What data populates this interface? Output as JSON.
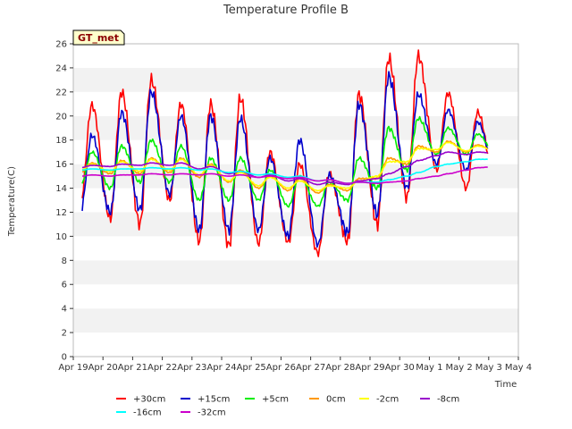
{
  "chart_data": {
    "type": "line",
    "title": "Temperature Profile B",
    "xlabel": "Time",
    "ylabel": "Temperature(C)",
    "badge": "GT_met",
    "ylim": [
      0,
      26
    ],
    "yticks": [
      0,
      2,
      4,
      6,
      8,
      10,
      12,
      14,
      16,
      18,
      20,
      22,
      24,
      26
    ],
    "xlim": [
      0,
      15
    ],
    "x_tick_labels": [
      "Apr 19",
      "Apr 20",
      "Apr 21",
      "Apr 22",
      "Apr 23",
      "Apr 24",
      "Apr 25",
      "Apr 26",
      "Apr 27",
      "Apr 28",
      "Apr 29",
      "Apr 30",
      "May 1",
      "May 2",
      "May 3",
      "May 4"
    ],
    "grid": "horizontal bands",
    "legend_position": "bottom",
    "series": [
      {
        "name": "+30cm",
        "color": "#ff0000",
        "daily_min": [
          12.9,
          11.5,
          11.0,
          13.0,
          9.6,
          9.2,
          9.4,
          9.5,
          8.6,
          9.6,
          11.0,
          13.2,
          15.5,
          14.0,
          14.2
        ],
        "daily_max": [
          20.9,
          22.0,
          23.0,
          21.0,
          21.0,
          21.5,
          17.0,
          16.0,
          15.2,
          21.8,
          24.8,
          25.0,
          21.9,
          20.3,
          18.2
        ]
      },
      {
        "name": "+15cm",
        "color": "#0000cc",
        "daily_min": [
          12.1,
          12.0,
          12.2,
          13.5,
          10.5,
          10.5,
          10.5,
          10.0,
          9.3,
          10.3,
          11.8,
          14.0,
          16.0,
          15.5,
          15.3
        ],
        "daily_max": [
          18.4,
          20.3,
          22.0,
          20.0,
          20.0,
          19.8,
          16.5,
          18.0,
          15.1,
          21.0,
          23.3,
          21.8,
          20.5,
          19.5,
          18.2
        ]
      },
      {
        "name": "+5cm",
        "color": "#00ee00",
        "daily_min": [
          14.2,
          14.0,
          14.5,
          14.5,
          13.0,
          13.0,
          13.0,
          12.5,
          12.5,
          13.0,
          14.0,
          15.5,
          16.8,
          16.8,
          16.8
        ],
        "daily_max": [
          17.0,
          17.5,
          18.0,
          17.5,
          16.5,
          16.5,
          15.5,
          15.0,
          14.5,
          16.5,
          19.0,
          19.8,
          19.0,
          18.5,
          18.0
        ]
      },
      {
        "name": "0cm",
        "color": "#ff9900",
        "daily_min": [
          15.3,
          15.2,
          15.2,
          15.3,
          14.9,
          14.5,
          14.0,
          13.8,
          13.6,
          13.8,
          14.8,
          16.0,
          17.0,
          17.0,
          17.0
        ],
        "daily_max": [
          16.1,
          16.3,
          16.5,
          16.5,
          16.0,
          15.5,
          15.0,
          14.8,
          14.3,
          14.8,
          16.5,
          17.5,
          17.9,
          17.6,
          17.4
        ]
      },
      {
        "name": "-2cm",
        "color": "#ffff00",
        "daily_min": [
          15.5,
          15.4,
          15.4,
          15.5,
          15.1,
          14.6,
          14.2,
          14.0,
          13.8,
          14.0,
          15.0,
          16.2,
          17.2,
          17.1,
          17.1
        ],
        "daily_max": [
          16.0,
          16.2,
          16.4,
          16.4,
          15.9,
          15.3,
          14.9,
          14.6,
          14.2,
          14.6,
          16.2,
          17.3,
          17.8,
          17.5,
          17.3
        ]
      },
      {
        "name": "-8cm",
        "color": "#9900cc",
        "daily_min": [
          15.7,
          15.8,
          15.9,
          15.9,
          15.6,
          15.2,
          14.9,
          14.6,
          14.3,
          14.3,
          14.8,
          15.8,
          16.7,
          16.8,
          16.9
        ],
        "daily_max": [
          15.9,
          16.0,
          16.1,
          16.1,
          15.8,
          15.4,
          15.1,
          14.8,
          14.5,
          14.6,
          15.2,
          16.3,
          17.0,
          17.0,
          17.0
        ]
      },
      {
        "name": "-16cm",
        "color": "#00ffff",
        "daily_min": [
          15.5,
          15.5,
          15.6,
          15.6,
          15.5,
          15.3,
          15.1,
          14.9,
          14.6,
          14.4,
          14.5,
          15.0,
          15.8,
          16.2,
          16.4
        ],
        "daily_max": [
          15.6,
          15.6,
          15.7,
          15.7,
          15.6,
          15.4,
          15.2,
          15.0,
          14.7,
          14.5,
          14.7,
          15.3,
          16.0,
          16.4,
          16.5
        ]
      },
      {
        "name": "-32cm",
        "color": "#cc00cc",
        "daily_min": [
          15.0,
          15.0,
          15.1,
          15.1,
          15.1,
          15.0,
          14.9,
          14.8,
          14.6,
          14.4,
          14.4,
          14.6,
          15.0,
          15.5,
          15.8
        ],
        "daily_max": [
          15.1,
          15.1,
          15.2,
          15.2,
          15.2,
          15.1,
          15.0,
          14.9,
          14.7,
          14.5,
          14.5,
          14.8,
          15.2,
          15.7,
          16.0
        ]
      }
    ]
  }
}
